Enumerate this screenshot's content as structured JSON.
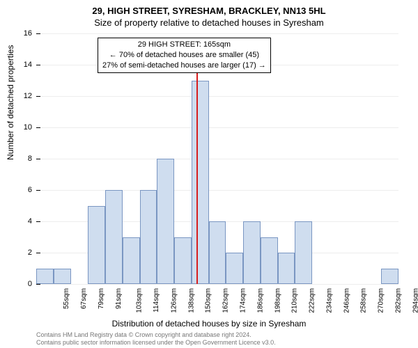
{
  "title_main": "29, HIGH STREET, SYRESHAM, BRACKLEY, NN13 5HL",
  "title_sub": "Size of property relative to detached houses in Syresham",
  "y_axis_title": "Number of detached properties",
  "x_axis_title": "Distribution of detached houses by size in Syresham",
  "credits_line1": "Contains HM Land Registry data © Crown copyright and database right 2024.",
  "credits_line2": "Contains public sector information licensed under the Open Government Licence v3.0.",
  "chart": {
    "type": "histogram",
    "ylim": [
      0,
      16
    ],
    "ytick_step": 2,
    "bar_color": "#cfddef",
    "bar_border_color": "#7a96c2",
    "grid_color": "#ededed",
    "background_color": "#ffffff",
    "marker_color": "#d81e1e",
    "bar_width_ratio": 1.0,
    "categories": [
      "55sqm",
      "67sqm",
      "79sqm",
      "91sqm",
      "103sqm",
      "114sqm",
      "126sqm",
      "138sqm",
      "150sqm",
      "162sqm",
      "174sqm",
      "186sqm",
      "198sqm",
      "210sqm",
      "222sqm",
      "234sqm",
      "246sqm",
      "258sqm",
      "270sqm",
      "282sqm",
      "294sqm"
    ],
    "values": [
      1,
      1,
      0,
      5,
      6,
      3,
      6,
      8,
      3,
      13,
      4,
      2,
      4,
      3,
      2,
      4,
      0,
      0,
      0,
      0,
      1
    ],
    "marker_index": 9,
    "marker_value_pct": 14.7
  },
  "callout": {
    "line1": "29 HIGH STREET: 165sqm",
    "line2": "← 70% of detached houses are smaller (45)",
    "line3": "27% of semi-detached houses are larger (17) →",
    "fontsize": 11
  }
}
